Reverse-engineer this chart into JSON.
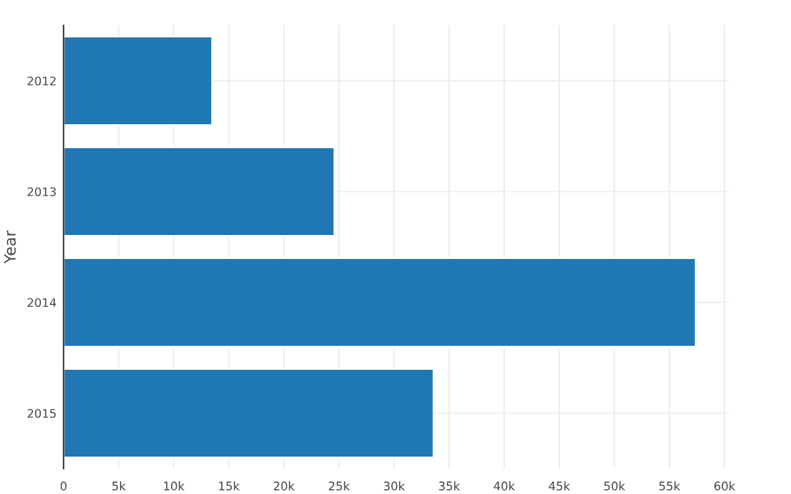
{
  "chart_data": {
    "type": "bar",
    "orientation": "horizontal",
    "ylabel": "Year",
    "categories": [
      "2012",
      "2013",
      "2014",
      "2015"
    ],
    "values": [
      13.5,
      24.6,
      57.4,
      33.6
    ],
    "color": "#1f77b4",
    "xlim": [
      0,
      60.4
    ],
    "xticks": [
      {
        "value": 0,
        "label": "0"
      },
      {
        "value": 5,
        "label": "5k"
      },
      {
        "value": 10,
        "label": "10k"
      },
      {
        "value": 15,
        "label": "15k"
      },
      {
        "value": 20,
        "label": "20k"
      },
      {
        "value": 25,
        "label": "25k"
      },
      {
        "value": 30,
        "label": "30k"
      },
      {
        "value": 35,
        "label": "35k"
      },
      {
        "value": 40,
        "label": "40k"
      },
      {
        "value": 45,
        "label": "45k"
      },
      {
        "value": 50,
        "label": "50k"
      },
      {
        "value": 55,
        "label": "55k"
      },
      {
        "value": 60,
        "label": "60k"
      }
    ],
    "grid": true
  }
}
